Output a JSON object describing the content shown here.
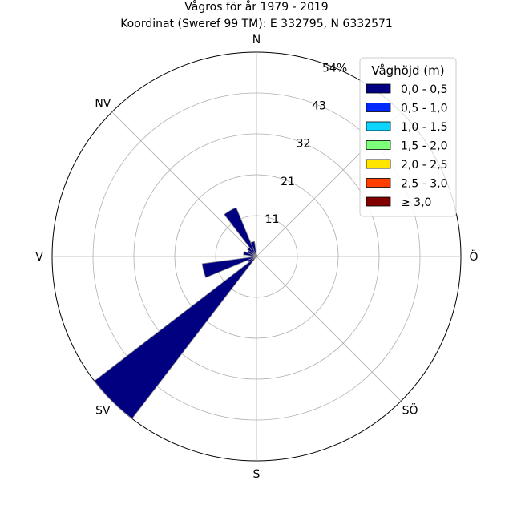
{
  "chart_data": {
    "type": "polar-bar",
    "title": "Vågros för år 1979 - 2019",
    "subtitle": "Koordinat (Sweref 99 TM): E 332795, N 6332571",
    "directions": [
      "N",
      "Ö",
      "S",
      "V",
      "NV",
      "SV",
      "SÖ"
    ],
    "direction_angles_deg": [
      0,
      90,
      180,
      270,
      315,
      225,
      135
    ],
    "radial_ticks": [
      "11",
      "21",
      "32",
      "43",
      "54%"
    ],
    "radial_tick_values": [
      10.8,
      21.6,
      32.4,
      43.2,
      54
    ],
    "rmax": 54,
    "legend": {
      "title": "Våghöjd (m)",
      "placement": "top-right",
      "entries": [
        {
          "label": "0,0 - 0,5",
          "color": "#000080"
        },
        {
          "label": "0,5 - 1,0",
          "color": "#0028ff"
        },
        {
          "label": "1,0 - 1,5",
          "color": "#0dd5ff"
        },
        {
          "label": "1,5 - 2,0",
          "color": "#7dff7a"
        },
        {
          "label": "2,0 - 2,5",
          "color": "#ffe500"
        },
        {
          "label": "2,5 - 3,0",
          "color": "#ff3f00"
        },
        {
          "label": "≥ 3,0",
          "color": "#800000"
        }
      ]
    },
    "bin_width_deg": 15,
    "series": [
      {
        "name": "0,0 - 0,5",
        "color": "#000080",
        "sectors": [
          {
            "dir_deg": 0,
            "value": 0.5
          },
          {
            "dir_deg": 15,
            "value": 0.4
          },
          {
            "dir_deg": 30,
            "value": 0.3
          },
          {
            "dir_deg": 90,
            "value": 0.2
          },
          {
            "dir_deg": 150,
            "value": 0.2
          },
          {
            "dir_deg": 195,
            "value": 0.4
          },
          {
            "dir_deg": 225,
            "value": 54
          },
          {
            "dir_deg": 240,
            "value": 2.5
          },
          {
            "dir_deg": 255,
            "value": 14.5
          },
          {
            "dir_deg": 270,
            "value": 1.5
          },
          {
            "dir_deg": 285,
            "value": 3.5
          },
          {
            "dir_deg": 300,
            "value": 2.6
          },
          {
            "dir_deg": 315,
            "value": 3.0
          },
          {
            "dir_deg": 330,
            "value": 14.0
          },
          {
            "dir_deg": 345,
            "value": 4.0
          }
        ]
      }
    ],
    "grid": true
  }
}
